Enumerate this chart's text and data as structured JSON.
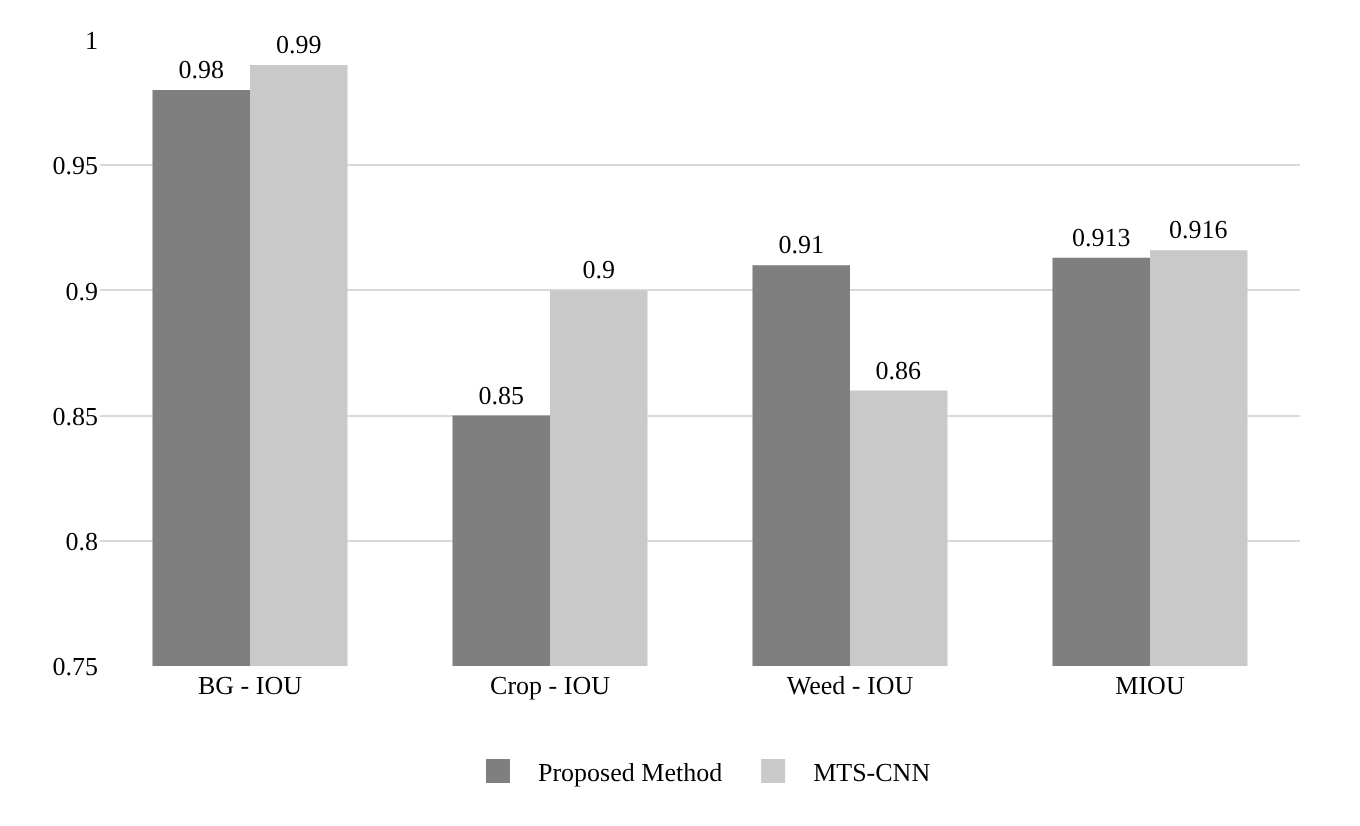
{
  "chart_data": {
    "type": "bar",
    "categories": [
      "BG - IOU",
      "Crop - IOU",
      "Weed - IOU",
      "MIOU"
    ],
    "series": [
      {
        "name": "Proposed Method",
        "color": "#7f7f7f",
        "values": [
          0.98,
          0.85,
          0.91,
          0.913
        ]
      },
      {
        "name": "MTS-CNN",
        "color": "#c9c9c9",
        "values": [
          0.99,
          0.9,
          0.86,
          0.916
        ]
      }
    ],
    "ylim": [
      0.75,
      1.0
    ],
    "yticks": [
      0.75,
      0.8,
      0.85,
      0.9,
      0.95,
      1
    ],
    "grid": "y",
    "legend": "bottom",
    "data_labels": true
  }
}
